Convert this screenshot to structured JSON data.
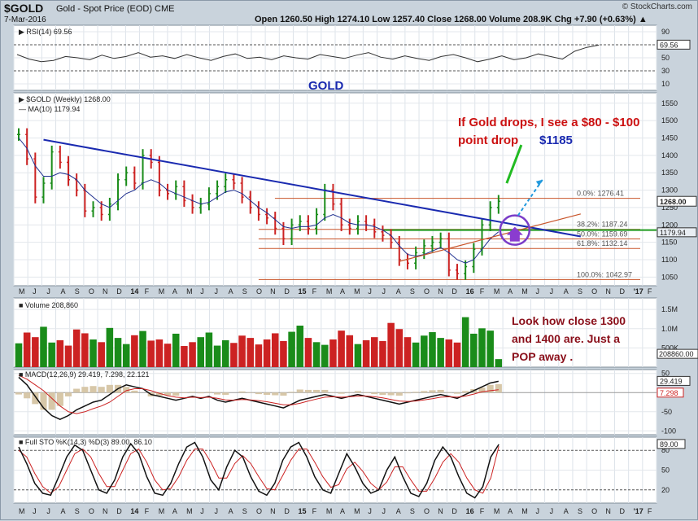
{
  "header": {
    "symbol": "$GOLD",
    "description": "Gold - Spot Price (EOD)",
    "exchange": "CME",
    "date": "7-Mar-2016",
    "brand": "© StockCharts.com",
    "quote": "Open 1260.50   High 1274.10   Low 1257.40   Close 1268.00   Volume 208.9K   Chg +7.90 (+0.63%) ▲"
  },
  "annotations": {
    "title": "GOLD",
    "drop_note_line1": "If Gold drops, I see a $80 - $100",
    "drop_note_line2": "point drop",
    "target_price": "$1185",
    "pop_line1": "Look how close 1300",
    "pop_line2": "and 1400 are. Just a",
    "pop_line3": "POP away ."
  },
  "colors": {
    "panel_bg": "#ffffff",
    "frame_bg": "#c9d3dc",
    "up_bar": "#1a8c1a",
    "down_bar": "#cc2222",
    "ma_line": "#1f2f8f",
    "trendline": "#1a2ab0",
    "fib_line": "#c8542a",
    "support_line": "#1f9a1f",
    "annotation_red": "#cc1111",
    "annotation_blue": "#1a2ab0",
    "annotation_dark_red": "#8a0f1a",
    "circle": "#7a3cc8",
    "arrow_green": "#22bb22",
    "arrow_cyan": "#2299dd"
  },
  "chart_data": [
    {
      "type": "line",
      "panel": "rsi",
      "title": "RSI(14) 69.56",
      "current_value": "69.56",
      "ylim": [
        0,
        100
      ],
      "y_ticks": [
        "90",
        "70",
        "50",
        "30",
        "10"
      ],
      "values": [
        55,
        48,
        44,
        46,
        52,
        50,
        47,
        54,
        49,
        52,
        58,
        51,
        53,
        49,
        55,
        50,
        46,
        52,
        56,
        49,
        51,
        47,
        53,
        50,
        48,
        55,
        52,
        49,
        54,
        58,
        51,
        48,
        53,
        49,
        46,
        52,
        55,
        50,
        44,
        48,
        53,
        47,
        50,
        56,
        52,
        48,
        60,
        66,
        69.56
      ]
    },
    {
      "type": "bar",
      "panel": "price",
      "title": "$GOLD (Weekly) 1268.00",
      "ma_label": "MA(10) 1179.94",
      "current_price_label": "1268.00",
      "ma_value_label": "1179.94",
      "ylim": [
        1025,
        1580
      ],
      "y_ticks": [
        "1550",
        "1500",
        "1450",
        "1400",
        "1350",
        "1300",
        "1250",
        "1200",
        "1150",
        "1100",
        "1050"
      ],
      "x_ticks": [
        "M",
        "J",
        "J",
        "A",
        "S",
        "O",
        "N",
        "D",
        "14",
        "F",
        "M",
        "A",
        "M",
        "J",
        "J",
        "A",
        "S",
        "O",
        "N",
        "D",
        "15",
        "F",
        "M",
        "A",
        "M",
        "J",
        "J",
        "A",
        "S",
        "O",
        "N",
        "D",
        "16",
        "F",
        "M",
        "A",
        "M",
        "J",
        "J",
        "A",
        "S",
        "O",
        "N",
        "D",
        "'17",
        "F"
      ],
      "close": [
        1460,
        1390,
        1280,
        1320,
        1410,
        1380,
        1330,
        1300,
        1240,
        1250,
        1230,
        1260,
        1330,
        1350,
        1320,
        1400,
        1380,
        1300,
        1290,
        1310,
        1270,
        1250,
        1260,
        1290,
        1310,
        1330,
        1320,
        1280,
        1250,
        1230,
        1220,
        1190,
        1160,
        1200,
        1210,
        1190,
        1230,
        1300,
        1260,
        1200,
        1190,
        1210,
        1200,
        1180,
        1170,
        1150,
        1100,
        1090,
        1120,
        1140,
        1150,
        1160,
        1070,
        1060,
        1080,
        1130,
        1200,
        1250,
        1268
      ],
      "ma": [
        1450,
        1420,
        1370,
        1340,
        1340,
        1350,
        1345,
        1330,
        1300,
        1280,
        1260,
        1250,
        1270,
        1290,
        1300,
        1320,
        1330,
        1320,
        1300,
        1290,
        1280,
        1270,
        1260,
        1265,
        1280,
        1295,
        1300,
        1290,
        1270,
        1250,
        1235,
        1215,
        1195,
        1190,
        1195,
        1195,
        1200,
        1220,
        1230,
        1220,
        1205,
        1200,
        1200,
        1195,
        1185,
        1170,
        1140,
        1115,
        1110,
        1115,
        1125,
        1135,
        1120,
        1100,
        1090,
        1100,
        1130,
        1160,
        1179.94
      ],
      "fib_levels": [
        {
          "label": "0.0%: 1276.41",
          "value": 1276.41
        },
        {
          "label": "38.2%: 1187.24",
          "value": 1187.24
        },
        {
          "label": "50.0%: 1159.69",
          "value": 1159.69
        },
        {
          "label": "61.8%: 1132.14",
          "value": 1132.14
        },
        {
          "label": "100.0%: 1042.97",
          "value": 1042.97
        }
      ],
      "support_level": 1185,
      "trendline": {
        "start": [
          3,
          1445
        ],
        "end": [
          64,
          1162
        ]
      },
      "channel_line": {
        "start": [
          46,
          1095
        ],
        "end": [
          64,
          1255
        ]
      }
    },
    {
      "type": "bar",
      "panel": "volume",
      "title": "Volume 208,860",
      "current_value_label": "208860.00",
      "y_ticks": [
        "1.5M",
        "1.0M",
        "500K"
      ],
      "ylim": [
        0,
        1800000
      ],
      "values": [
        620000,
        900000,
        780000,
        1050000,
        640000,
        700000,
        560000,
        980000,
        880000,
        720000,
        650000,
        1020000,
        760000,
        600000,
        830000,
        940000,
        690000,
        720000,
        610000,
        870000,
        550000,
        650000,
        780000,
        900000,
        560000,
        700000,
        630000,
        820000,
        760000,
        590000,
        720000,
        880000,
        680000,
        920000,
        1080000,
        760000,
        650000,
        580000,
        720000,
        950000,
        830000,
        600000,
        700000,
        780000,
        680000,
        1150000,
        990000,
        780000,
        640000,
        820000,
        910000,
        760000,
        720000,
        640000,
        1300000,
        870000,
        1010000,
        950000,
        208860
      ]
    },
    {
      "type": "line",
      "panel": "macd",
      "title": "MACD(12,26,9) 29.419, 7.298, 22.121",
      "macd_label": "29.419",
      "signal_label": "7.298",
      "histogram_label": "22.121",
      "y_ticks": [
        "50",
        "0",
        "-50",
        "-100"
      ],
      "ylim": [
        -110,
        60
      ],
      "macd": [
        40,
        20,
        -10,
        -40,
        -60,
        -70,
        -60,
        -45,
        -35,
        -25,
        -20,
        -5,
        10,
        20,
        15,
        10,
        -5,
        -10,
        -15,
        -20,
        -15,
        -10,
        -15,
        -10,
        -20,
        -25,
        -20,
        -15,
        -20,
        -25,
        -30,
        -35,
        -40,
        -30,
        -20,
        -15,
        -10,
        -5,
        -10,
        -15,
        -10,
        -5,
        -10,
        -15,
        -20,
        -25,
        -30,
        -25,
        -20,
        -15,
        -10,
        -5,
        -10,
        -15,
        -5,
        5,
        15,
        25,
        29.419
      ],
      "signal": [
        45,
        35,
        20,
        5,
        -15,
        -35,
        -50,
        -55,
        -50,
        -42,
        -35,
        -25,
        -10,
        5,
        10,
        10,
        5,
        -2,
        -8,
        -12,
        -14,
        -12,
        -13,
        -12,
        -15,
        -19,
        -20,
        -18,
        -19,
        -21,
        -24,
        -28,
        -32,
        -32,
        -28,
        -22,
        -17,
        -12,
        -11,
        -12,
        -11,
        -9,
        -9,
        -11,
        -14,
        -18,
        -22,
        -23,
        -22,
        -19,
        -16,
        -12,
        -11,
        -12,
        -9,
        -4,
        2,
        5,
        7.298
      ]
    },
    {
      "type": "line",
      "panel": "stochastic",
      "title": "Full STO %K(14,3) %D(3) 89.00, 86.10",
      "k_label": "89.00",
      "y_ticks": [
        "80",
        "50",
        "20"
      ],
      "ylim": [
        0,
        100
      ],
      "k": [
        85,
        60,
        30,
        15,
        12,
        40,
        70,
        88,
        80,
        50,
        20,
        15,
        35,
        70,
        90,
        75,
        40,
        15,
        12,
        30,
        60,
        85,
        92,
        70,
        35,
        20,
        55,
        80,
        70,
        40,
        18,
        12,
        30,
        65,
        85,
        92,
        70,
        40,
        20,
        15,
        45,
        75,
        55,
        30,
        15,
        20,
        50,
        70,
        40,
        15,
        10,
        30,
        65,
        85,
        70,
        40,
        15,
        8,
        25,
        70,
        89
      ],
      "d": [
        80,
        70,
        45,
        25,
        15,
        25,
        50,
        75,
        82,
        70,
        45,
        25,
        25,
        50,
        75,
        82,
        62,
        35,
        20,
        22,
        40,
        65,
        82,
        82,
        62,
        38,
        38,
        60,
        72,
        60,
        40,
        22,
        20,
        42,
        65,
        82,
        82,
        62,
        40,
        24,
        28,
        52,
        62,
        48,
        30,
        20,
        32,
        55,
        55,
        35,
        18,
        18,
        38,
        62,
        75,
        62,
        38,
        20,
        15,
        38,
        86.1
      ]
    }
  ],
  "bottom_axis_ticks": [
    "M",
    "J",
    "J",
    "A",
    "S",
    "O",
    "N",
    "D",
    "14",
    "F",
    "M",
    "A",
    "M",
    "J",
    "J",
    "A",
    "S",
    "O",
    "N",
    "D",
    "15",
    "F",
    "M",
    "A",
    "M",
    "J",
    "J",
    "A",
    "S",
    "O",
    "N",
    "D",
    "16",
    "F",
    "M",
    "A",
    "M",
    "J",
    "J",
    "A",
    "S",
    "O",
    "N",
    "D",
    "'17",
    "F"
  ]
}
